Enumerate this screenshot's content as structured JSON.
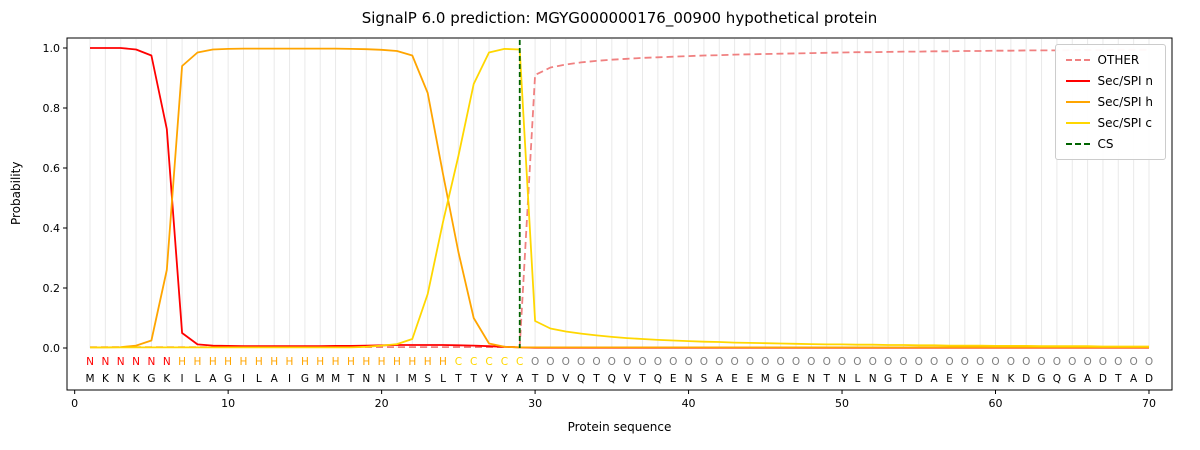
{
  "chart_data": {
    "type": "line",
    "title": "SignalP 6.0 prediction: MGYG000000176_00900 hypothetical protein",
    "xlabel": "Protein sequence",
    "ylabel": "Probability",
    "xlim": [
      -0.5,
      71.5
    ],
    "ylim": [
      0.0,
      1.0
    ],
    "x_ticks": [
      0,
      10,
      20,
      30,
      40,
      50,
      60,
      70
    ],
    "y_ticks": [
      "0.0",
      "0.2",
      "0.4",
      "0.6",
      "0.8",
      "1.0"
    ],
    "x_start": 1,
    "grid": "vertical line per residue",
    "legend_position": "upper right",
    "grid_color": "#e9e9e9",
    "sequence_color": "#000000",
    "series": [
      {
        "name": "OTHER",
        "key": "other",
        "color": "#f08080",
        "dash": true,
        "values": [
          0.003,
          0.003,
          0.003,
          0.003,
          0.003,
          0.003,
          0.003,
          0.003,
          0.003,
          0.003,
          0.003,
          0.003,
          0.003,
          0.003,
          0.003,
          0.003,
          0.003,
          0.003,
          0.003,
          0.003,
          0.003,
          0.003,
          0.003,
          0.003,
          0.003,
          0.003,
          0.003,
          0.003,
          0.003,
          0.91,
          0.935,
          0.945,
          0.952,
          0.957,
          0.961,
          0.964,
          0.967,
          0.969,
          0.971,
          0.973,
          0.975,
          0.976,
          0.978,
          0.979,
          0.98,
          0.981,
          0.982,
          0.983,
          0.984,
          0.985,
          0.986,
          0.986,
          0.987,
          0.988,
          0.988,
          0.989,
          0.989,
          0.99,
          0.99,
          0.991,
          0.991,
          0.992,
          0.992,
          0.992,
          0.993,
          0.993,
          0.993,
          0.994,
          0.994,
          0.994
        ]
      },
      {
        "name": "Sec/SPI n",
        "key": "sec-spi-n",
        "color": "#ff0000",
        "dash": false,
        "values": [
          1.0,
          1.0,
          1.0,
          0.995,
          0.975,
          0.73,
          0.05,
          0.012,
          0.008,
          0.007,
          0.006,
          0.006,
          0.006,
          0.006,
          0.006,
          0.006,
          0.007,
          0.007,
          0.008,
          0.009,
          0.01,
          0.01,
          0.01,
          0.01,
          0.009,
          0.008,
          0.006,
          0.004,
          0.002,
          0.001,
          0.001,
          0.001,
          0.001,
          0.001,
          0.001,
          0.001,
          0.001,
          0.001,
          0.001,
          0.001,
          0.001,
          0.001,
          0.001,
          0.001,
          0.001,
          0.001,
          0.001,
          0.001,
          0.001,
          0.001,
          0.001,
          0.001,
          0.001,
          0.001,
          0.001,
          0.001,
          0.001,
          0.001,
          0.001,
          0.001,
          0.001,
          0.001,
          0.001,
          0.001,
          0.001,
          0.001,
          0.001,
          0.001,
          0.001,
          0.001
        ]
      },
      {
        "name": "Sec/SPI h",
        "key": "sec-spi-h",
        "color": "#ffa500",
        "dash": false,
        "values": [
          0.002,
          0.002,
          0.003,
          0.008,
          0.025,
          0.26,
          0.94,
          0.985,
          0.995,
          0.997,
          0.998,
          0.998,
          0.998,
          0.998,
          0.998,
          0.998,
          0.998,
          0.997,
          0.996,
          0.994,
          0.99,
          0.975,
          0.85,
          0.58,
          0.32,
          0.1,
          0.015,
          0.004,
          0.002,
          0.002,
          0.002,
          0.002,
          0.002,
          0.002,
          0.002,
          0.002,
          0.002,
          0.002,
          0.002,
          0.002,
          0.002,
          0.002,
          0.002,
          0.002,
          0.002,
          0.002,
          0.002,
          0.002,
          0.002,
          0.002,
          0.002,
          0.002,
          0.002,
          0.002,
          0.002,
          0.002,
          0.002,
          0.002,
          0.002,
          0.002,
          0.002,
          0.002,
          0.002,
          0.002,
          0.002,
          0.002,
          0.002,
          0.002,
          0.002,
          0.002
        ]
      },
      {
        "name": "Sec/SPI c",
        "key": "sec-spi-c",
        "color": "#ffd700",
        "dash": false,
        "values": [
          0.002,
          0.002,
          0.002,
          0.002,
          0.002,
          0.002,
          0.002,
          0.002,
          0.002,
          0.002,
          0.002,
          0.002,
          0.002,
          0.002,
          0.002,
          0.002,
          0.002,
          0.002,
          0.004,
          0.008,
          0.013,
          0.03,
          0.18,
          0.42,
          0.64,
          0.88,
          0.985,
          0.997,
          0.995,
          0.09,
          0.065,
          0.055,
          0.048,
          0.042,
          0.037,
          0.033,
          0.03,
          0.027,
          0.025,
          0.023,
          0.021,
          0.02,
          0.018,
          0.017,
          0.016,
          0.015,
          0.014,
          0.013,
          0.012,
          0.012,
          0.011,
          0.011,
          0.01,
          0.01,
          0.009,
          0.009,
          0.008,
          0.008,
          0.008,
          0.007,
          0.007,
          0.007,
          0.006,
          0.006,
          0.006,
          0.006,
          0.005,
          0.005,
          0.005,
          0.005
        ]
      }
    ],
    "cs_line": {
      "name": "CS",
      "key": "cs",
      "color": "#006400",
      "x": 29,
      "dash": true
    },
    "sequence": "MKNKGKILAGILAIGMMTNNIMSLTTVYATDVQTQVTQENSAEEMGENTNLNGTDAEYENKDGQGADTAD",
    "regions": [
      {
        "label": "N",
        "start": 1,
        "end": 6,
        "color": "#ff0000"
      },
      {
        "label": "H",
        "start": 7,
        "end": 24,
        "color": "#ffa500"
      },
      {
        "label": "C",
        "start": 25,
        "end": 29,
        "color": "#ffd700"
      },
      {
        "label": "O",
        "start": 30,
        "end": 70,
        "color": "#808080"
      }
    ]
  }
}
